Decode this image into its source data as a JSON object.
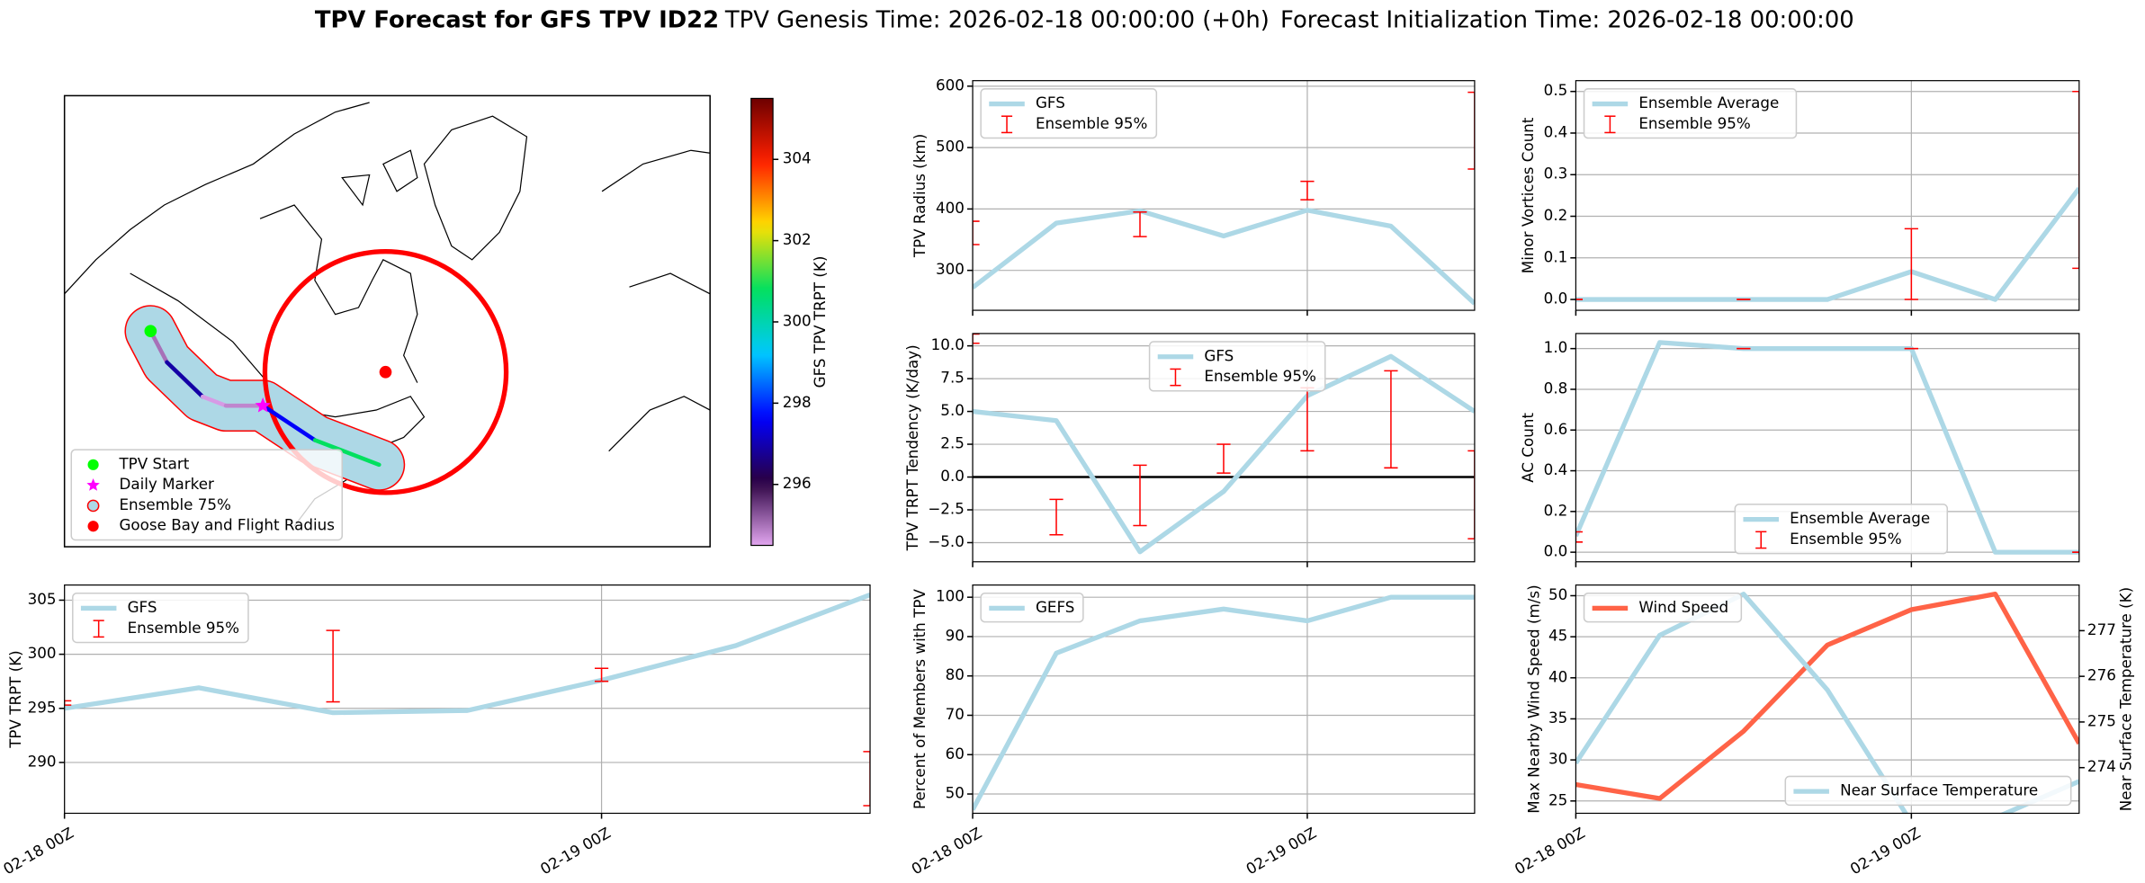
{
  "title": {
    "main": "TPV Forecast for GFS TPV ID22",
    "genesis": "TPV Genesis Time: 2026-02-18 00:00:00 (+0h)",
    "init": "Forecast Initialization Time: 2026-02-18 00:00:00"
  },
  "chart_data": [
    {
      "type": "map",
      "lonlim": [
        -135,
        15
      ],
      "latlim": [
        32,
        87
      ],
      "track": {
        "lon": [
          -115.0,
          -111.2,
          -102.9,
          -97.5,
          -88.9,
          -76.8,
          -61.9
        ],
        "lat": [
          58.3,
          54.5,
          50.3,
          49.2,
          49.2,
          45.0,
          42.0
        ],
        "trpt": [
          295.0,
          296.9,
          294.6,
          294.8,
          297.6,
          300.8,
          305.5
        ]
      },
      "daily_marker": {
        "lon": -88.9,
        "lat": 49.2
      },
      "goose_bay": {
        "lon": -60.4,
        "lat": 53.3,
        "radius": 14.7
      },
      "legend": {
        "loc": "lower left",
        "entries": [
          {
            "label": "TPV Start",
            "marker": "circle",
            "color": "#00ff00"
          },
          {
            "label": "Daily Marker",
            "marker": "star",
            "color": "#ff00ff"
          },
          {
            "label": "Ensemble 75%",
            "marker": "circle",
            "color": "#add8e6",
            "edge": "#ff0000"
          },
          {
            "label": "Goose Bay and Flight Radius",
            "marker": "circle",
            "color": "#ff0000"
          }
        ]
      },
      "colorbar": {
        "label": "GFS TPV TRPT (K)",
        "clim": [
          294.5,
          305.5
        ],
        "ticks": [
          296,
          298,
          300,
          302,
          304
        ],
        "colormap": [
          "#e2a6f0",
          "#2a0040",
          "#0000ff",
          "#00c8ff",
          "#00e060",
          "#ffe000",
          "#ff2000",
          "#6e0000"
        ]
      }
    },
    {
      "type": "line",
      "ylabel": "TPV TRPT (K)",
      "x": [
        0,
        6,
        12,
        18,
        24,
        30,
        36
      ],
      "xlim": [
        0,
        36
      ],
      "xticks": [
        {
          "value": 0,
          "label": "02-18 00Z"
        },
        {
          "value": 24,
          "label": "02-19 00Z"
        }
      ],
      "ylim": [
        285.3,
        306.4
      ],
      "yticks": [
        290,
        295,
        300,
        305
      ],
      "grid": true,
      "legend": "upper left",
      "series": [
        {
          "name": "GFS",
          "color": "#add8e6",
          "values": [
            295.0,
            296.9,
            294.6,
            294.8,
            297.6,
            300.8,
            305.5
          ]
        }
      ],
      "errorbars": {
        "name": "Ensemble 95%",
        "color": "#ff0000",
        "x": [
          0,
          12,
          24,
          36
        ],
        "low": [
          295.3,
          295.6,
          297.5,
          286.0
        ],
        "high": [
          295.7,
          302.2,
          298.7,
          291.0
        ]
      }
    },
    {
      "type": "line",
      "ylabel": "TPV Radius (km)",
      "x": [
        0,
        6,
        12,
        18,
        24,
        30,
        36
      ],
      "xlim": [
        0,
        36
      ],
      "xticks": [
        0,
        24
      ],
      "ylim": [
        235,
        609
      ],
      "yticks": [
        300,
        400,
        500,
        600
      ],
      "grid": true,
      "legend": "upper left",
      "series": [
        {
          "name": "GFS",
          "color": "#add8e6",
          "values": [
            272,
            377,
            397,
            356,
            398,
            372,
            246
          ]
        }
      ],
      "errorbars": {
        "name": "Ensemble 95%",
        "color": "#ff0000",
        "x": [
          0,
          12,
          24,
          36
        ],
        "low": [
          342,
          355,
          415,
          465
        ],
        "high": [
          380,
          395,
          445,
          590
        ]
      }
    },
    {
      "type": "line",
      "ylabel": "TPV TRPT Tendency (K/day)",
      "x": [
        0,
        6,
        12,
        18,
        24,
        30,
        36
      ],
      "xlim": [
        0,
        36
      ],
      "xticks": [
        0,
        24
      ],
      "ylim": [
        -6.46,
        10.94
      ],
      "yticks": [
        {
          "value": -5,
          "label": "−5.0"
        },
        {
          "value": -2.5,
          "label": "−2.5"
        },
        {
          "value": 0,
          "label": "0.0"
        },
        2.5,
        {
          "value": 5,
          "label": "5.0"
        },
        7.5,
        {
          "value": 10,
          "label": "10.0"
        }
      ],
      "grid": true,
      "legend": "upper center",
      "hline": 0,
      "series": [
        {
          "name": "GFS",
          "color": "#add8e6",
          "values": [
            5.0,
            4.3,
            -5.7,
            -1.1,
            6.2,
            9.2,
            5.0
          ]
        }
      ],
      "errorbars": {
        "name": "Ensemble 95%",
        "color": "#ff0000",
        "x": [
          0,
          6,
          12,
          18,
          24,
          30,
          36
        ],
        "low": [
          10.2,
          -4.4,
          -3.7,
          0.3,
          2.0,
          0.7,
          -4.7
        ],
        "high": [
          10.9,
          -1.7,
          0.9,
          2.5,
          6.8,
          8.1,
          2.0
        ]
      }
    },
    {
      "type": "line",
      "ylabel": "Percent of Members with TPV",
      "x": [
        0,
        6,
        12,
        18,
        24,
        30,
        36
      ],
      "xlim": [
        0,
        36
      ],
      "xticks": [
        {
          "value": 0,
          "label": "02-18 00Z"
        },
        {
          "value": 24,
          "label": "02-19 00Z"
        }
      ],
      "ylim": [
        45.1,
        103.1
      ],
      "yticks": [
        50,
        60,
        70,
        80,
        90,
        100
      ],
      "grid": true,
      "legend": "upper left",
      "series": [
        {
          "name": "GEFS",
          "color": "#add8e6",
          "values": [
            46,
            85.8,
            94,
            97,
            94,
            100,
            100
          ]
        }
      ]
    },
    {
      "type": "line",
      "ylabel": "Minor Vortices Count",
      "x": [
        0,
        6,
        12,
        18,
        24,
        30,
        36
      ],
      "xlim": [
        0,
        36
      ],
      "xticks": [
        0,
        24
      ],
      "ylim": [
        -0.026,
        0.526
      ],
      "yticks": [
        {
          "value": 0,
          "label": "0.0"
        },
        0.1,
        0.2,
        0.3,
        0.4,
        0.5
      ],
      "grid": true,
      "legend": "upper left",
      "series": [
        {
          "name": "Ensemble Average",
          "color": "#add8e6",
          "values": [
            0,
            0,
            0,
            0,
            0.067,
            0,
            0.267
          ]
        }
      ],
      "errorbars": {
        "name": "Ensemble 95%",
        "color": "#ff0000",
        "x": [
          0,
          12,
          24,
          36
        ],
        "low": [
          0,
          0,
          0,
          0.075
        ],
        "high": [
          0,
          0,
          0.17,
          0.5
        ]
      }
    },
    {
      "type": "line",
      "ylabel": "AC Count",
      "x": [
        0,
        6,
        12,
        18,
        24,
        30,
        36
      ],
      "xlim": [
        0,
        36
      ],
      "xticks": [
        0,
        24
      ],
      "ylim": [
        -0.047,
        1.074
      ],
      "yticks": [
        {
          "value": 0,
          "label": "0.0"
        },
        0.2,
        0.4,
        0.6,
        0.8,
        {
          "value": 1,
          "label": "1.0"
        }
      ],
      "grid": true,
      "legend": "lower center",
      "series": [
        {
          "name": "Ensemble Average",
          "color": "#add8e6",
          "values": [
            0.08,
            1.03,
            1.0,
            1.0,
            1.0,
            0,
            0
          ]
        }
      ],
      "errorbars": {
        "name": "Ensemble 95%",
        "color": "#ff0000",
        "x": [
          0,
          12,
          24,
          36
        ],
        "low": [
          0.05,
          1,
          1,
          0
        ],
        "high": [
          0.1,
          1,
          1,
          0
        ]
      }
    },
    {
      "type": "line",
      "ylabel": "Max Nearby Wind Speed (m/s)",
      "ylabel_color": "#ff6347",
      "y2label": "Near Surface Temperature (K)",
      "y2label_color": "#4169e1",
      "x": [
        0,
        6,
        12,
        18,
        24,
        30,
        36
      ],
      "xlim": [
        0,
        36
      ],
      "xticks": [
        {
          "value": 0,
          "label": "02-18 00Z"
        },
        {
          "value": 24,
          "label": "02-19 00Z"
        }
      ],
      "ylim": [
        23.5,
        51.3
      ],
      "yticks": [
        25,
        30,
        35,
        40,
        45,
        50
      ],
      "y2lim": [
        273.0,
        278.0
      ],
      "y2ticks": [
        274,
        275,
        276,
        277
      ],
      "grid": true,
      "series": [
        {
          "name": "Wind Speed",
          "color": "#ff6347",
          "legend": "upper left",
          "values": [
            27,
            25.3,
            33.5,
            44,
            48.3,
            50.2,
            32
          ]
        },
        {
          "name": "Near Surface Temperature",
          "color": "#add8e6",
          "axis": "y2",
          "legend": "lower right",
          "values": [
            274.1,
            276.9,
            277.8,
            275.7,
            272.8,
            272.9,
            273.7
          ]
        }
      ]
    }
  ]
}
